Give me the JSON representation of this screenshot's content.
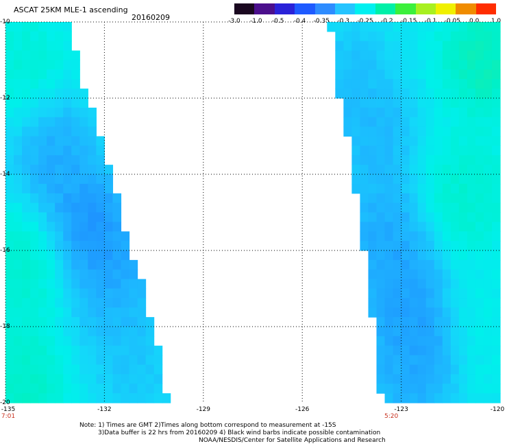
{
  "header": {
    "title": "ASCAT 25KM MLE-1 ascending",
    "date": "20160209"
  },
  "colorbar": {
    "labels": [
      "-3.0",
      "-1.0",
      "-0.5",
      "-0.4",
      "-0.35",
      "-0.3",
      "-0.25",
      "-0.2",
      "-0.15",
      "-0.1",
      "-0.05",
      "0.0",
      "1.0"
    ],
    "colors": [
      "#1a0820",
      "#4b0f8c",
      "#2a22d8",
      "#1e5aff",
      "#2e8cff",
      "#25c4ff",
      "#00f0f0",
      "#00f0a8",
      "#3cf03c",
      "#a8f020",
      "#f0f000",
      "#f08c00",
      "#ff2d00"
    ]
  },
  "map": {
    "lon_range": [
      -135,
      -120
    ],
    "lat_range": [
      -20,
      -10
    ],
    "lon_ticks": [
      {
        "value": -135,
        "label": "-135"
      },
      {
        "value": -132,
        "label": "-132"
      },
      {
        "value": -129,
        "label": "-129"
      },
      {
        "value": -126,
        "label": "-126"
      },
      {
        "value": -123,
        "label": "-123"
      },
      {
        "value": -120,
        "label": "-120"
      }
    ],
    "lat_ticks": [
      {
        "value": -10,
        "label": "-10"
      },
      {
        "value": -12,
        "label": "-12"
      },
      {
        "value": -14,
        "label": "-14"
      },
      {
        "value": -16,
        "label": "-16"
      },
      {
        "value": -18,
        "label": "-18"
      },
      {
        "value": -20,
        "label": "-20"
      }
    ],
    "time_labels": [
      {
        "lon": -135,
        "label": "7:01"
      },
      {
        "lon": -123.3,
        "label": "5:20"
      }
    ],
    "swaths": [
      {
        "name": "west-swath",
        "edge": [
          [
            -10,
            -133.0
          ],
          [
            -11.3,
            -132.8
          ],
          [
            -12.2,
            -132.4
          ],
          [
            -13.3,
            -132.0
          ],
          [
            -14.2,
            -131.7
          ],
          [
            -15.3,
            -131.5
          ],
          [
            -16.2,
            -131.1
          ],
          [
            -17.3,
            -130.7
          ],
          [
            -18.2,
            -130.5
          ],
          [
            -19.2,
            -130.2
          ],
          [
            -20,
            -130.1
          ]
        ],
        "side": "west"
      },
      {
        "name": "east-swath",
        "edge": [
          [
            -10,
            -125.2
          ],
          [
            -10.9,
            -125.0
          ],
          [
            -11.8,
            -124.9
          ],
          [
            -12.6,
            -124.7
          ],
          [
            -13.5,
            -124.5
          ],
          [
            -14.3,
            -124.4
          ],
          [
            -15.2,
            -124.3
          ],
          [
            -16.0,
            -124.1
          ],
          [
            -16.9,
            -124.0
          ],
          [
            -17.6,
            -123.9
          ],
          [
            -18.4,
            -123.8
          ],
          [
            -19.2,
            -123.7
          ],
          [
            -20,
            -123.6
          ]
        ],
        "side": "east"
      }
    ],
    "anomalies": [
      {
        "lat": -13.5,
        "lon": -133.5,
        "value": -0.35
      },
      {
        "lat": -15.2,
        "lon": -132.5,
        "value": -0.37
      },
      {
        "lat": -16.5,
        "lon": -131.8,
        "value": -0.36
      },
      {
        "lat": -17.8,
        "lon": -131.5,
        "value": -0.33
      },
      {
        "lat": -19.2,
        "lon": -131.0,
        "value": -0.32
      },
      {
        "lat": -16.5,
        "lon": -134.5,
        "value": -0.24
      },
      {
        "lat": -11.0,
        "lon": -134.5,
        "value": -0.25
      },
      {
        "lat": -19.5,
        "lon": -134.5,
        "value": -0.23
      },
      {
        "lat": -11.5,
        "lon": -124.5,
        "value": -0.33
      },
      {
        "lat": -13.0,
        "lon": -123.8,
        "value": -0.34
      },
      {
        "lat": -15.5,
        "lon": -123.5,
        "value": -0.35
      },
      {
        "lat": -17.0,
        "lon": -123.0,
        "value": -0.36
      },
      {
        "lat": -18.5,
        "lon": -122.5,
        "value": -0.36
      },
      {
        "lat": -19.5,
        "lon": -122.8,
        "value": -0.34
      },
      {
        "lat": -14.5,
        "lon": -121.0,
        "value": -0.24
      },
      {
        "lat": -11.0,
        "lon": -120.5,
        "value": -0.22
      },
      {
        "lat": -18.0,
        "lon": -120.3,
        "value": -0.27
      }
    ],
    "background_value": -0.28
  },
  "notes": {
    "line1": "Note: 1) Times are GMT 2)Times along bottom correspond to measurement at -15S",
    "line2": "3)Data buffer is 22 hrs from 20160209 4) Black wind barbs indicate possible contamination",
    "line3": "NOAA/NESDIS/Center for Satellite Applications and Research"
  }
}
